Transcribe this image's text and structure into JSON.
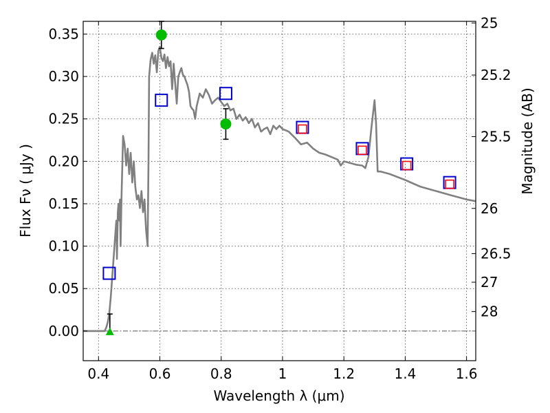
{
  "chart_data": {
    "type": "line",
    "xlabel": "Wavelength  λ (μm)",
    "ylabel": "Flux  Fν  ( μJy )",
    "ylabel_right": "Magnitude (AB)",
    "xlim": [
      0.35,
      1.63
    ],
    "ylim": [
      -0.035,
      0.365
    ],
    "x_ticks": [
      0.4,
      0.6,
      0.8,
      1.0,
      1.2,
      1.4,
      1.6
    ],
    "x_tick_labels": [
      "0.4",
      "0.6",
      "0.8",
      "1",
      "1.2",
      "1.4",
      "1.6"
    ],
    "y_ticks": [
      0.0,
      0.05,
      0.1,
      0.15,
      0.2,
      0.25,
      0.3,
      0.35
    ],
    "y_tick_labels": [
      "0.00",
      "0.05",
      "0.10",
      "0.15",
      "0.20",
      "0.25",
      "0.30",
      "0.35"
    ],
    "right_ticks": [
      {
        "flux": 0.3631,
        "label": "25"
      },
      {
        "flux": 0.3017,
        "label": "25.2"
      },
      {
        "flux": 0.2291,
        "label": "25.5"
      },
      {
        "flux": 0.1445,
        "label": "26"
      },
      {
        "flux": 0.0912,
        "label": "26.5"
      },
      {
        "flux": 0.0575,
        "label": "27"
      },
      {
        "flux": 0.0229,
        "label": "28"
      }
    ],
    "grid": true,
    "series": [
      {
        "kind": "line",
        "color": "#808080",
        "x": [
          0.35,
          0.42,
          0.425,
          0.43,
          0.435,
          0.44,
          0.445,
          0.45,
          0.452,
          0.455,
          0.458,
          0.46,
          0.463,
          0.465,
          0.468,
          0.47,
          0.472,
          0.475,
          0.478,
          0.48,
          0.485,
          0.49,
          0.495,
          0.5,
          0.505,
          0.51,
          0.515,
          0.52,
          0.525,
          0.53,
          0.535,
          0.54,
          0.545,
          0.55,
          0.555,
          0.56,
          0.563,
          0.565,
          0.57,
          0.575,
          0.58,
          0.585,
          0.59,
          0.595,
          0.6,
          0.605,
          0.61,
          0.615,
          0.62,
          0.625,
          0.63,
          0.635,
          0.64,
          0.645,
          0.65,
          0.655,
          0.66,
          0.665,
          0.67,
          0.675,
          0.68,
          0.685,
          0.69,
          0.695,
          0.7,
          0.705,
          0.71,
          0.715,
          0.72,
          0.73,
          0.74,
          0.75,
          0.76,
          0.77,
          0.78,
          0.79,
          0.8,
          0.81,
          0.82,
          0.83,
          0.84,
          0.85,
          0.86,
          0.87,
          0.88,
          0.89,
          0.9,
          0.91,
          0.92,
          0.93,
          0.94,
          0.95,
          0.96,
          0.97,
          0.98,
          0.99,
          1.0,
          1.02,
          1.04,
          1.06,
          1.08,
          1.1,
          1.12,
          1.14,
          1.16,
          1.18,
          1.19,
          1.2,
          1.22,
          1.24,
          1.26,
          1.27,
          1.28,
          1.29,
          1.3,
          1.305,
          1.31,
          1.315,
          1.32,
          1.35,
          1.4,
          1.45,
          1.5,
          1.55,
          1.6,
          1.63
        ],
        "y": [
          0.0,
          0.0,
          0.004,
          0.01,
          0.02,
          0.04,
          0.065,
          0.09,
          0.1,
          0.115,
          0.13,
          0.085,
          0.14,
          0.15,
          0.13,
          0.155,
          0.1,
          0.16,
          0.2,
          0.23,
          0.22,
          0.195,
          0.215,
          0.185,
          0.21,
          0.175,
          0.2,
          0.17,
          0.155,
          0.16,
          0.145,
          0.165,
          0.14,
          0.155,
          0.12,
          0.1,
          0.2,
          0.3,
          0.32,
          0.328,
          0.315,
          0.325,
          0.305,
          0.33,
          0.335,
          0.322,
          0.318,
          0.326,
          0.31,
          0.323,
          0.312,
          0.318,
          0.285,
          0.315,
          0.292,
          0.268,
          0.3,
          0.305,
          0.31,
          0.302,
          0.3,
          0.295,
          0.29,
          0.282,
          0.265,
          0.262,
          0.26,
          0.25,
          0.265,
          0.28,
          0.275,
          0.285,
          0.278,
          0.268,
          0.272,
          0.275,
          0.27,
          0.265,
          0.268,
          0.26,
          0.262,
          0.25,
          0.255,
          0.248,
          0.252,
          0.245,
          0.25,
          0.24,
          0.245,
          0.235,
          0.238,
          0.24,
          0.232,
          0.242,
          0.238,
          0.242,
          0.238,
          0.235,
          0.228,
          0.22,
          0.222,
          0.215,
          0.21,
          0.208,
          0.205,
          0.202,
          0.195,
          0.2,
          0.198,
          0.196,
          0.195,
          0.192,
          0.205,
          0.24,
          0.272,
          0.245,
          0.188,
          0.188,
          0.188,
          0.185,
          0.178,
          0.17,
          0.165,
          0.16,
          0.155,
          0.153
        ]
      },
      {
        "kind": "blue-squares",
        "color": "#0000cc",
        "x": [
          0.435,
          0.605,
          0.815,
          1.065,
          1.26,
          1.405,
          1.545
        ],
        "y": [
          0.068,
          0.272,
          0.28,
          0.24,
          0.215,
          0.197,
          0.175
        ]
      },
      {
        "kind": "red-squares",
        "color": "#ff0000",
        "x": [
          1.065,
          1.26,
          1.405,
          1.545
        ],
        "y": [
          0.238,
          0.213,
          0.195,
          0.173
        ]
      },
      {
        "kind": "green-points",
        "color": "#00bb00",
        "x": [
          0.605,
          0.815
        ],
        "y": [
          0.349,
          0.244
        ],
        "yerr": [
          0.016,
          0.018
        ]
      },
      {
        "kind": "green-upper-limit",
        "color": "#00bb00",
        "x": [
          0.437
        ],
        "y": [
          0.0
        ],
        "ytop": [
          0.02
        ]
      }
    ]
  }
}
